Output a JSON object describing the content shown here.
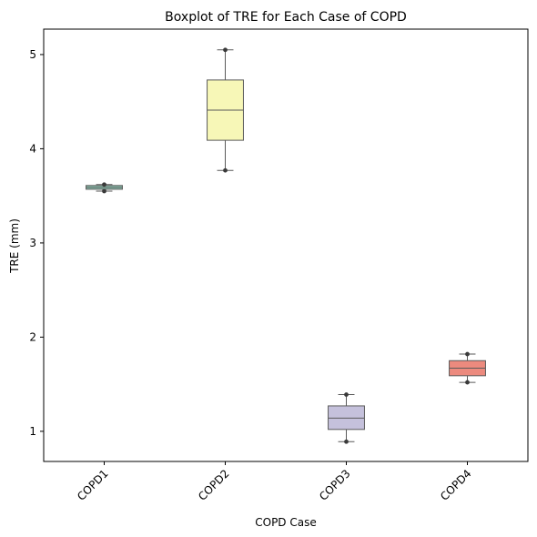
{
  "chart_data": {
    "type": "boxplot",
    "title": "Boxplot of TRE for Each Case of COPD",
    "xlabel": "COPD Case",
    "ylabel": "TRE (mm)",
    "categories": [
      "COPD1",
      "COPD2",
      "COPD3",
      "COPD4"
    ],
    "ylim": [
      0.68,
      5.27
    ],
    "yticks": [
      1,
      2,
      3,
      4,
      5
    ],
    "ytick_labels": [
      "1",
      "2",
      "3",
      "4",
      "5"
    ],
    "grid": false,
    "boxes": [
      {
        "category": "COPD1",
        "min": 3.55,
        "q1": 3.57,
        "median": 3.59,
        "q3": 3.61,
        "max": 3.62,
        "color": "#8dc8b3"
      },
      {
        "category": "COPD2",
        "min": 3.77,
        "q1": 4.09,
        "median": 4.41,
        "q3": 4.73,
        "max": 5.05,
        "color": "#f7f7b7"
      },
      {
        "category": "COPD3",
        "min": 0.89,
        "q1": 1.02,
        "median": 1.14,
        "q3": 1.27,
        "max": 1.39,
        "color": "#c5c1dc"
      },
      {
        "category": "COPD4",
        "min": 1.52,
        "q1": 1.59,
        "median": 1.67,
        "q3": 1.75,
        "max": 1.82,
        "color": "#ec8a7e"
      }
    ]
  }
}
